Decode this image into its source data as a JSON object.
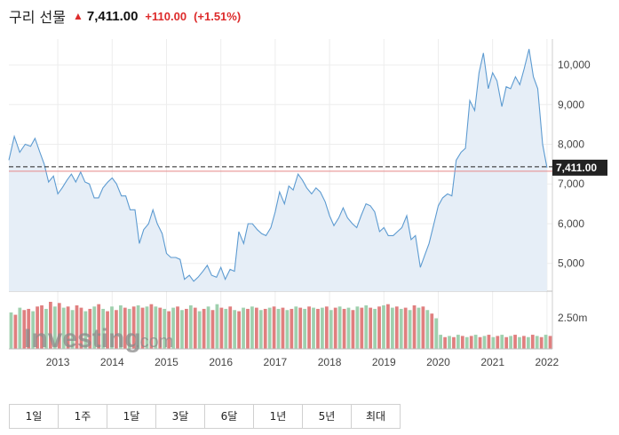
{
  "header": {
    "title": "구리 선물",
    "price": "7,411.00",
    "change": "+110.00",
    "change_pct": "(+1.51%)",
    "up_color": "#dd2b2b"
  },
  "watermark": {
    "brand": "Investing",
    "suffix": ".com"
  },
  "price_tag": "7,411.00",
  "volume_label": "2.50m",
  "tabs": [
    "1일",
    "1주",
    "1달",
    "3달",
    "6달",
    "1년",
    "5년",
    "최대"
  ],
  "chart_data": {
    "type": "area",
    "price_axis": {
      "ticks": [
        5000,
        6000,
        7000,
        8000,
        9000,
        10000
      ],
      "tick_labels": [
        "5,000",
        "6,000",
        "7,000",
        "8,000",
        "9,000",
        "10,000"
      ],
      "range": [
        4300,
        10650
      ]
    },
    "x_axis": {
      "labels": [
        "2013",
        "2014",
        "2015",
        "2016",
        "2017",
        "2018",
        "2019",
        "2020",
        "2021",
        "2022"
      ],
      "range": [
        2012.6,
        2022.6
      ]
    },
    "last_price": 7411,
    "series": [
      {
        "values": [
          [
            2012.6,
            7600
          ],
          [
            2012.7,
            8200
          ],
          [
            2012.8,
            7800
          ],
          [
            2012.9,
            8000
          ],
          [
            2013.0,
            7950
          ],
          [
            2013.08,
            8150
          ],
          [
            2013.17,
            7800
          ],
          [
            2013.25,
            7500
          ],
          [
            2013.33,
            7050
          ],
          [
            2013.42,
            7200
          ],
          [
            2013.5,
            6750
          ],
          [
            2013.58,
            6900
          ],
          [
            2013.67,
            7100
          ],
          [
            2013.75,
            7250
          ],
          [
            2013.83,
            7050
          ],
          [
            2013.92,
            7300
          ],
          [
            2014.0,
            7050
          ],
          [
            2014.08,
            7000
          ],
          [
            2014.17,
            6650
          ],
          [
            2014.25,
            6650
          ],
          [
            2014.33,
            6900
          ],
          [
            2014.42,
            7050
          ],
          [
            2014.5,
            7150
          ],
          [
            2014.58,
            7000
          ],
          [
            2014.67,
            6700
          ],
          [
            2014.75,
            6700
          ],
          [
            2014.83,
            6350
          ],
          [
            2014.92,
            6350
          ],
          [
            2015.0,
            5500
          ],
          [
            2015.08,
            5850
          ],
          [
            2015.17,
            6000
          ],
          [
            2015.25,
            6350
          ],
          [
            2015.33,
            6000
          ],
          [
            2015.42,
            5750
          ],
          [
            2015.5,
            5250
          ],
          [
            2015.58,
            5150
          ],
          [
            2015.67,
            5150
          ],
          [
            2015.75,
            5100
          ],
          [
            2015.83,
            4600
          ],
          [
            2015.92,
            4700
          ],
          [
            2016.0,
            4550
          ],
          [
            2016.08,
            4650
          ],
          [
            2016.17,
            4800
          ],
          [
            2016.25,
            4950
          ],
          [
            2016.33,
            4700
          ],
          [
            2016.42,
            4650
          ],
          [
            2016.5,
            4900
          ],
          [
            2016.58,
            4600
          ],
          [
            2016.67,
            4850
          ],
          [
            2016.75,
            4800
          ],
          [
            2016.83,
            5800
          ],
          [
            2016.92,
            5500
          ],
          [
            2017.0,
            6000
          ],
          [
            2017.08,
            6000
          ],
          [
            2017.17,
            5850
          ],
          [
            2017.25,
            5750
          ],
          [
            2017.33,
            5700
          ],
          [
            2017.42,
            5900
          ],
          [
            2017.5,
            6300
          ],
          [
            2017.58,
            6800
          ],
          [
            2017.67,
            6500
          ],
          [
            2017.75,
            6950
          ],
          [
            2017.83,
            6850
          ],
          [
            2017.92,
            7250
          ],
          [
            2018.0,
            7100
          ],
          [
            2018.08,
            6900
          ],
          [
            2018.17,
            6750
          ],
          [
            2018.25,
            6900
          ],
          [
            2018.33,
            6800
          ],
          [
            2018.42,
            6550
          ],
          [
            2018.5,
            6200
          ],
          [
            2018.58,
            5950
          ],
          [
            2018.67,
            6150
          ],
          [
            2018.75,
            6400
          ],
          [
            2018.83,
            6150
          ],
          [
            2018.92,
            6000
          ],
          [
            2019.0,
            5900
          ],
          [
            2019.08,
            6200
          ],
          [
            2019.17,
            6500
          ],
          [
            2019.25,
            6450
          ],
          [
            2019.33,
            6300
          ],
          [
            2019.42,
            5800
          ],
          [
            2019.5,
            5900
          ],
          [
            2019.58,
            5700
          ],
          [
            2019.67,
            5700
          ],
          [
            2019.75,
            5800
          ],
          [
            2019.83,
            5900
          ],
          [
            2019.92,
            6200
          ],
          [
            2020.0,
            5600
          ],
          [
            2020.08,
            5700
          ],
          [
            2020.17,
            4900
          ],
          [
            2020.25,
            5200
          ],
          [
            2020.33,
            5500
          ],
          [
            2020.42,
            6000
          ],
          [
            2020.5,
            6450
          ],
          [
            2020.58,
            6650
          ],
          [
            2020.67,
            6750
          ],
          [
            2020.75,
            6700
          ],
          [
            2020.83,
            7600
          ],
          [
            2020.92,
            7800
          ],
          [
            2021.0,
            7900
          ],
          [
            2021.08,
            9100
          ],
          [
            2021.17,
            8850
          ],
          [
            2021.25,
            9800
          ],
          [
            2021.33,
            10300
          ],
          [
            2021.42,
            9400
          ],
          [
            2021.5,
            9800
          ],
          [
            2021.58,
            9600
          ],
          [
            2021.67,
            8950
          ],
          [
            2021.75,
            9450
          ],
          [
            2021.83,
            9400
          ],
          [
            2021.92,
            9700
          ],
          [
            2022.0,
            9500
          ],
          [
            2022.08,
            9900
          ],
          [
            2022.17,
            10400
          ],
          [
            2022.25,
            9700
          ],
          [
            2022.33,
            9400
          ],
          [
            2022.42,
            8000
          ],
          [
            2022.5,
            7411
          ]
        ]
      }
    ],
    "volume": {
      "label_value": "2.50m",
      "bars": [
        [
          "u",
          3.1
        ],
        [
          "d",
          2.9
        ],
        [
          "u",
          3.5
        ],
        [
          "d",
          3.3
        ],
        [
          "d",
          3.4
        ],
        [
          "u",
          3.2
        ],
        [
          "d",
          3.6
        ],
        [
          "d",
          3.7
        ],
        [
          "u",
          3.4
        ],
        [
          "d",
          4.0
        ],
        [
          "u",
          3.6
        ],
        [
          "d",
          3.9
        ],
        [
          "u",
          3.5
        ],
        [
          "d",
          3.6
        ],
        [
          "u",
          3.3
        ],
        [
          "d",
          3.7
        ],
        [
          "d",
          3.5
        ],
        [
          "u",
          3.2
        ],
        [
          "d",
          3.4
        ],
        [
          "u",
          3.6
        ],
        [
          "d",
          3.8
        ],
        [
          "u",
          3.4
        ],
        [
          "d",
          3.2
        ],
        [
          "u",
          3.6
        ],
        [
          "d",
          3.3
        ],
        [
          "u",
          3.7
        ],
        [
          "d",
          3.5
        ],
        [
          "u",
          3.4
        ],
        [
          "d",
          3.6
        ],
        [
          "u",
          3.7
        ],
        [
          "d",
          3.5
        ],
        [
          "u",
          3.6
        ],
        [
          "d",
          3.8
        ],
        [
          "u",
          3.6
        ],
        [
          "d",
          3.5
        ],
        [
          "u",
          3.4
        ],
        [
          "d",
          3.2
        ],
        [
          "u",
          3.5
        ],
        [
          "d",
          3.6
        ],
        [
          "u",
          3.3
        ],
        [
          "d",
          3.4
        ],
        [
          "u",
          3.7
        ],
        [
          "d",
          3.5
        ],
        [
          "u",
          3.2
        ],
        [
          "d",
          3.4
        ],
        [
          "u",
          3.6
        ],
        [
          "d",
          3.3
        ],
        [
          "u",
          3.8
        ],
        [
          "d",
          3.5
        ],
        [
          "u",
          3.4
        ],
        [
          "d",
          3.6
        ],
        [
          "u",
          3.3
        ],
        [
          "d",
          3.2
        ],
        [
          "u",
          3.5
        ],
        [
          "d",
          3.4
        ],
        [
          "u",
          3.6
        ],
        [
          "d",
          3.5
        ],
        [
          "u",
          3.3
        ],
        [
          "d",
          3.4
        ],
        [
          "u",
          3.5
        ],
        [
          "d",
          3.6
        ],
        [
          "u",
          3.4
        ],
        [
          "d",
          3.5
        ],
        [
          "u",
          3.3
        ],
        [
          "d",
          3.4
        ],
        [
          "u",
          3.6
        ],
        [
          "d",
          3.5
        ],
        [
          "u",
          3.4
        ],
        [
          "d",
          3.6
        ],
        [
          "u",
          3.5
        ],
        [
          "d",
          3.4
        ],
        [
          "u",
          3.5
        ],
        [
          "d",
          3.6
        ],
        [
          "u",
          3.3
        ],
        [
          "d",
          3.5
        ],
        [
          "u",
          3.6
        ],
        [
          "d",
          3.4
        ],
        [
          "u",
          3.5
        ],
        [
          "d",
          3.3
        ],
        [
          "u",
          3.6
        ],
        [
          "d",
          3.5
        ],
        [
          "u",
          3.7
        ],
        [
          "d",
          3.5
        ],
        [
          "u",
          3.4
        ],
        [
          "d",
          3.6
        ],
        [
          "u",
          3.7
        ],
        [
          "d",
          3.8
        ],
        [
          "u",
          3.5
        ],
        [
          "d",
          3.6
        ],
        [
          "u",
          3.4
        ],
        [
          "d",
          3.5
        ],
        [
          "u",
          3.3
        ],
        [
          "d",
          3.7
        ],
        [
          "u",
          3.5
        ],
        [
          "d",
          3.6
        ],
        [
          "u",
          3.3
        ],
        [
          "d",
          3.0
        ],
        [
          "u",
          2.6
        ],
        [
          "u",
          1.2
        ],
        [
          "d",
          1.0
        ],
        [
          "u",
          1.1
        ],
        [
          "d",
          1.0
        ],
        [
          "u",
          1.2
        ],
        [
          "d",
          1.1
        ],
        [
          "u",
          1.0
        ],
        [
          "d",
          1.1
        ],
        [
          "u",
          1.2
        ],
        [
          "d",
          1.0
        ],
        [
          "u",
          1.1
        ],
        [
          "d",
          1.2
        ],
        [
          "u",
          1.0
        ],
        [
          "d",
          1.1
        ],
        [
          "u",
          1.2
        ],
        [
          "d",
          1.0
        ],
        [
          "u",
          1.1
        ],
        [
          "d",
          1.2
        ],
        [
          "u",
          1.0
        ],
        [
          "d",
          1.1
        ],
        [
          "u",
          1.0
        ],
        [
          "d",
          1.2
        ],
        [
          "u",
          1.1
        ],
        [
          "d",
          1.0
        ],
        [
          "u",
          1.2
        ],
        [
          "d",
          1.1
        ]
      ]
    }
  }
}
